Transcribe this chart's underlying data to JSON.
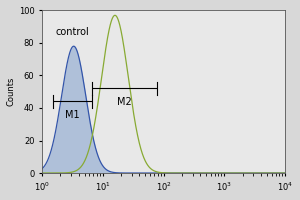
{
  "title": "",
  "xlabel": "",
  "ylabel": "Counts",
  "xlim_log": [
    1,
    10000
  ],
  "ylim": [
    0,
    100
  ],
  "yticks": [
    0,
    20,
    40,
    60,
    80,
    100
  ],
  "blue_color": "#3355aa",
  "blue_fill": "#7799cc",
  "blue_fill_alpha": 0.5,
  "green_color": "#88aa33",
  "green_fill_alpha": 0.0,
  "bg_color": "#d8d8d8",
  "plot_bg": "#e8e8e8",
  "control_label": "control",
  "m1_label": "M1",
  "m2_label": "M2",
  "blue_peak_log": 0.52,
  "blue_peak_y": 78,
  "blue_sigma": 0.2,
  "green_peak_log": 1.2,
  "green_peak_y": 97,
  "green_sigma": 0.22,
  "m1_x1_log": 0.18,
  "m1_x2_log": 0.82,
  "m1_y": 44,
  "m2_x1_log": 0.82,
  "m2_x2_log": 1.9,
  "m2_y": 52,
  "bracket_tick_height": 4,
  "fontsize_axis": 6,
  "fontsize_label": 6,
  "fontsize_annot": 7,
  "linewidth_hist": 0.9,
  "linewidth_bracket": 0.8
}
